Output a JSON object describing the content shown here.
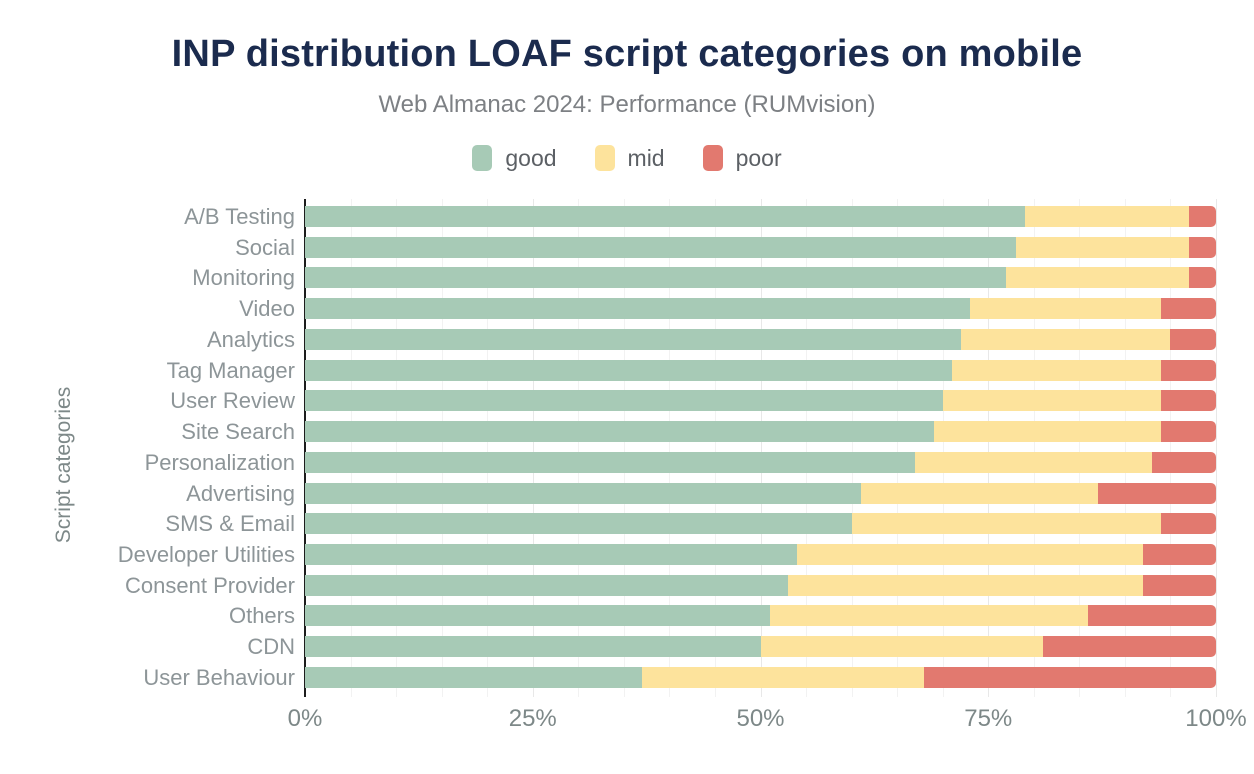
{
  "title": "INP distribution LOAF script categories on mobile",
  "subtitle": "Web Almanac 2024: Performance (RUMvision)",
  "colors": {
    "good": "#a7cab6",
    "mid": "#fde39c",
    "poor": "#e2796f",
    "title_navy": "#1b2b4e",
    "axis_line": "#1d1d1d"
  },
  "chart_data": {
    "type": "bar",
    "orientation": "horizontal",
    "stacked": true,
    "title": "INP distribution LOAF script categories on mobile",
    "subtitle": "Web Almanac 2024: Performance (RUMvision)",
    "ylabel": "Script categories",
    "xlabel": "",
    "xlim": [
      0,
      100
    ],
    "grid": "vertical gridlines every 5%, legend top center",
    "legend_position": "top",
    "x_ticks": [
      {
        "label": "0%",
        "value": 0
      },
      {
        "label": "25%",
        "value": 25
      },
      {
        "label": "50%",
        "value": 50
      },
      {
        "label": "75%",
        "value": 75
      },
      {
        "label": "100%",
        "value": 100
      }
    ],
    "categories": [
      "A/B Testing",
      "Social",
      "Monitoring",
      "Video",
      "Analytics",
      "Tag Manager",
      "User Review",
      "Site Search",
      "Personalization",
      "Advertising",
      "SMS & Email",
      "Developer Utilities",
      "Consent Provider",
      "Others",
      "CDN",
      "User Behaviour"
    ],
    "series": [
      {
        "name": "good",
        "color": "#a7cab6",
        "values": [
          79,
          78,
          77,
          73,
          72,
          71,
          70,
          69,
          67,
          61,
          60,
          54,
          53,
          51,
          50,
          37
        ]
      },
      {
        "name": "mid",
        "color": "#fde39c",
        "values": [
          18,
          19,
          20,
          21,
          23,
          23,
          24,
          25,
          26,
          26,
          34,
          38,
          39,
          35,
          31,
          31
        ]
      },
      {
        "name": "poor",
        "color": "#e2796f",
        "values": [
          3,
          3,
          3,
          6,
          5,
          6,
          6,
          6,
          7,
          13,
          6,
          8,
          8,
          14,
          19,
          32
        ]
      }
    ]
  }
}
